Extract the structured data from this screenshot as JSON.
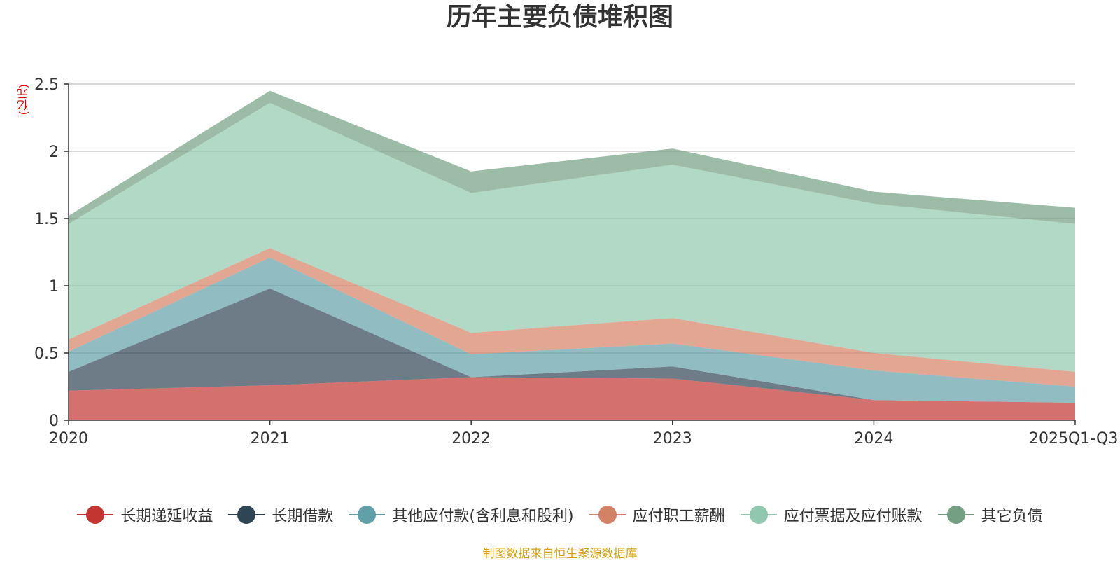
{
  "chart_data": {
    "type": "area",
    "stacked": true,
    "title": "历年主要负债堆积图",
    "unit_label": "(亿元)",
    "categories": [
      "2020",
      "2021",
      "2022",
      "2023",
      "2024",
      "2025Q1-Q3"
    ],
    "y_ticks": [
      0,
      0.5,
      1,
      1.5,
      2,
      2.5
    ],
    "y_tick_labels": [
      "0",
      "0.5",
      "1",
      "1.5",
      "2",
      "2.5"
    ],
    "ylim": [
      0,
      2.5
    ],
    "grid": true,
    "legend_position": "bottom",
    "series": [
      {
        "name": "长期递延收益",
        "color": "#c23531",
        "values": [
          0.22,
          0.26,
          0.32,
          0.31,
          0.15,
          0.13
        ]
      },
      {
        "name": "长期借款",
        "color": "#2f4554",
        "values": [
          0.14,
          0.72,
          0.0,
          0.09,
          0.0,
          0.0
        ]
      },
      {
        "name": "其他应付款(含利息和股利)",
        "color": "#61a0a8",
        "values": [
          0.15,
          0.23,
          0.17,
          0.17,
          0.22,
          0.12
        ]
      },
      {
        "name": "应付职工薪酬",
        "color": "#d48265",
        "values": [
          0.09,
          0.07,
          0.16,
          0.19,
          0.13,
          0.11
        ]
      },
      {
        "name": "应付票据及应付账款",
        "color": "#91c7ae",
        "values": [
          0.86,
          1.08,
          1.04,
          1.14,
          1.11,
          1.1
        ]
      },
      {
        "name": "其它负债",
        "color": "#749f83",
        "values": [
          0.06,
          0.09,
          0.16,
          0.12,
          0.09,
          0.12
        ]
      }
    ],
    "source_note": "制图数据来自恒生聚源数据库"
  }
}
